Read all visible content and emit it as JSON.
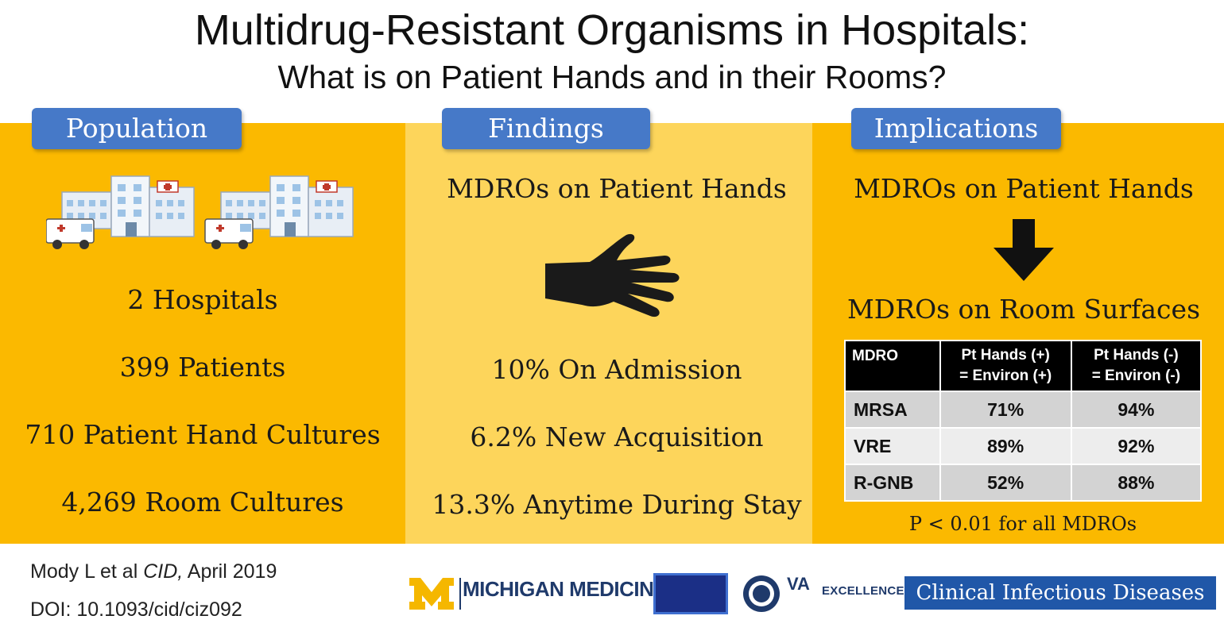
{
  "header": {
    "title": "Multidrug-Resistant Organisms in Hospitals:",
    "subtitle": "What is on Patient Hands and in their Rooms?"
  },
  "population": {
    "tab": "Population",
    "stats": [
      "2  Hospitals",
      "399  Patients",
      "710  Patient Hand Cultures",
      "4,269  Room Cultures"
    ]
  },
  "findings": {
    "tab": "Findings",
    "heading": "MDROs on Patient Hands",
    "stats": [
      "10% On Admission",
      "6.2% New Acquisition",
      "13.3% Anytime During Stay"
    ]
  },
  "implications": {
    "tab": "Implications",
    "heading_top": "MDROs on Patient Hands",
    "heading_bottom": "MDROs on Room Surfaces",
    "table": {
      "headers": [
        "MDRO",
        "Pt Hands (+)",
        "= Environ (+)",
        "Pt Hands (-)",
        "= Environ (-)"
      ],
      "rows": [
        {
          "name": "MRSA",
          "pos": "71%",
          "neg": "94%"
        },
        {
          "name": "VRE",
          "pos": "89%",
          "neg": "92%"
        },
        {
          "name": "R-GNB",
          "pos": "52%",
          "neg": "88%"
        }
      ]
    },
    "p_note": "P < 0.01 for all MDROs"
  },
  "footer": {
    "citation_prefix": "Mody L et al ",
    "citation_journal": "CID,",
    "citation_date": " April 2019",
    "doi": "DOI: 10.1093/cid/ciz092",
    "michigan_medicine": "MICHIGAN MEDICINE",
    "va_label": "VA",
    "va_excellence": "EXCELLENCE",
    "cid_logo": "Clinical Infectious Diseases"
  },
  "icons": {
    "hospital": "hospital-building-icon",
    "hand": "hand-icon",
    "arrow": "down-arrow-icon"
  },
  "colors": {
    "band_gold": "#fbb900",
    "band_light": "#fdd55b",
    "tab_blue": "#4679c8",
    "table_header": "#000000"
  }
}
